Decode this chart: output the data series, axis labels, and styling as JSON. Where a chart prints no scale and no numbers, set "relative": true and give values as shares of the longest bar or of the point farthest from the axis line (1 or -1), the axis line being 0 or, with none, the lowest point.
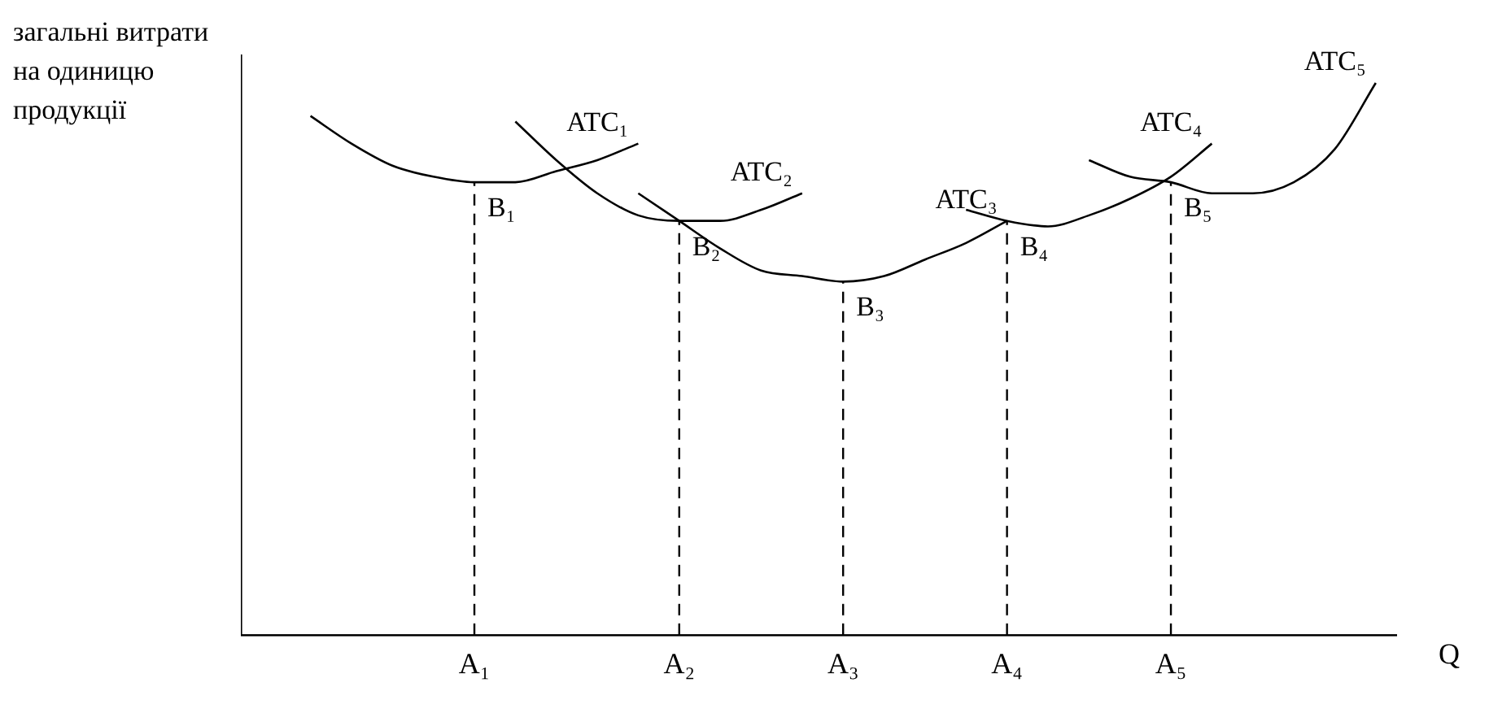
{
  "chart_data": {
    "type": "line",
    "relative": true,
    "xlabel": "Q",
    "ylabel": "загальні витрати на одиницю продукції",
    "grid": false,
    "legend": false,
    "marker": "none",
    "line_style": "solid",
    "categories": [
      null,
      null,
      null,
      null,
      null,
      "A₁",
      null,
      null,
      null,
      null,
      "A₂",
      null,
      null,
      null,
      "A₃",
      null,
      null,
      null,
      "A₄",
      null,
      null,
      null,
      "A₅",
      null,
      null,
      null,
      null,
      null
    ],
    "series": [
      {
        "name": "ATC₁",
        "color": "#000000",
        "values": [
          null,
          0.94,
          0.89,
          0.85,
          0.83,
          0.82,
          0.82,
          0.84,
          0.86,
          0.89,
          null,
          null,
          null,
          null,
          null,
          null,
          null,
          null,
          null,
          null,
          null,
          null,
          null,
          null,
          null,
          null,
          null,
          null
        ]
      },
      {
        "name": "ATC₂",
        "color": "#000000",
        "values": [
          null,
          null,
          null,
          null,
          null,
          null,
          0.93,
          0.86,
          0.8,
          0.76,
          0.75,
          0.75,
          0.77,
          0.8,
          null,
          null,
          null,
          null,
          null,
          null,
          null,
          null,
          null,
          null,
          null,
          null,
          null,
          null
        ]
      },
      {
        "name": "ATC₃",
        "color": "#000000",
        "values": [
          null,
          null,
          null,
          null,
          null,
          null,
          null,
          null,
          null,
          0.8,
          0.75,
          0.7,
          0.66,
          0.65,
          0.64,
          0.65,
          0.68,
          0.71,
          0.75,
          null,
          null,
          null,
          null,
          null,
          null,
          null,
          null,
          null
        ]
      },
      {
        "name": "ATC₄",
        "color": "#000000",
        "values": [
          null,
          null,
          null,
          null,
          null,
          null,
          null,
          null,
          null,
          null,
          null,
          null,
          null,
          null,
          null,
          null,
          null,
          0.77,
          0.75,
          0.74,
          0.76,
          0.79,
          0.83,
          0.89,
          null,
          null,
          null,
          null
        ]
      },
      {
        "name": "ATC₅",
        "color": "#000000",
        "values": [
          null,
          null,
          null,
          null,
          null,
          null,
          null,
          null,
          null,
          null,
          null,
          null,
          null,
          null,
          null,
          null,
          null,
          null,
          null,
          null,
          0.86,
          0.83,
          0.82,
          0.8,
          0.8,
          0.82,
          0.88,
          1
        ]
      }
    ],
    "ref_lines": [
      {
        "axis": "x",
        "value": "A₁",
        "line_style": "dashed"
      },
      {
        "axis": "x",
        "value": "A₂",
        "line_style": "dashed"
      },
      {
        "axis": "x",
        "value": "A₃",
        "line_style": "dashed"
      },
      {
        "axis": "x",
        "value": "A₄",
        "line_style": "dashed"
      },
      {
        "axis": "x",
        "value": "A₅",
        "line_style": "dashed"
      }
    ],
    "annotations": [
      {
        "text": "B₁",
        "x": "A₁",
        "y": 0.82
      },
      {
        "text": "B₂",
        "x": "A₂",
        "y": 0.75
      },
      {
        "text": "B₃",
        "x": "A₃",
        "y": 0.64
      },
      {
        "text": "B₄",
        "x": "A₄",
        "y": 0.75
      },
      {
        "text": "B₅",
        "x": "A₅",
        "y": 0.82
      }
    ]
  }
}
